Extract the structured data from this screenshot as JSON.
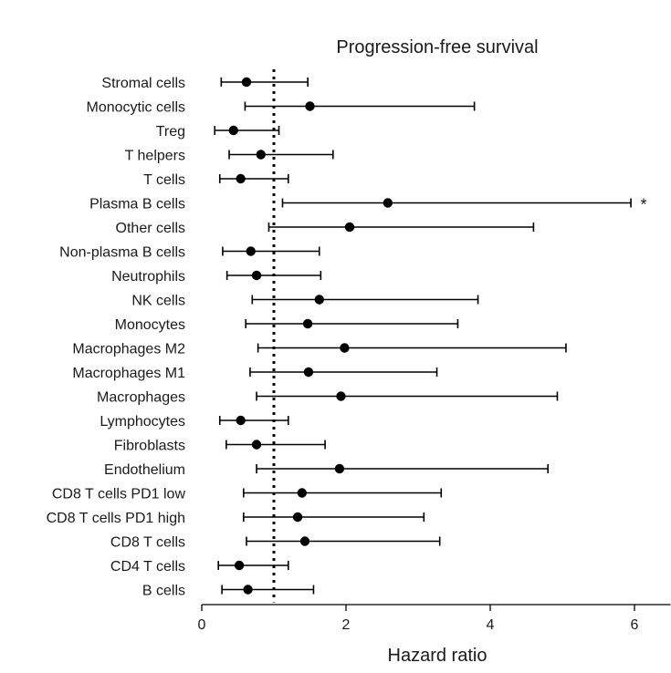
{
  "chart_data": {
    "type": "forest",
    "title": "Progression-free survival",
    "xlabel": "Hazard ratio",
    "xlim": [
      0,
      6.5
    ],
    "xticks": [
      0,
      2,
      4,
      6
    ],
    "xtick_labels": [
      "0",
      "2",
      "4",
      "6"
    ],
    "reference_line": 1,
    "rows": [
      {
        "label": "Stromal cells",
        "hr": 0.62,
        "lo": 0.27,
        "hi": 1.47,
        "sig": ""
      },
      {
        "label": "Monocytic cells",
        "hr": 1.5,
        "lo": 0.6,
        "hi": 3.78,
        "sig": ""
      },
      {
        "label": "Treg",
        "hr": 0.44,
        "lo": 0.18,
        "hi": 1.07,
        "sig": ""
      },
      {
        "label": "T helpers",
        "hr": 0.82,
        "lo": 0.38,
        "hi": 1.82,
        "sig": ""
      },
      {
        "label": "T cells",
        "hr": 0.54,
        "lo": 0.25,
        "hi": 1.2,
        "sig": ""
      },
      {
        "label": "Plasma B cells",
        "hr": 2.58,
        "lo": 1.12,
        "hi": 5.95,
        "sig": "*"
      },
      {
        "label": "Other cells",
        "hr": 2.05,
        "lo": 0.93,
        "hi": 4.6,
        "sig": ""
      },
      {
        "label": "Non-plasma B cells",
        "hr": 0.68,
        "lo": 0.29,
        "hi": 1.63,
        "sig": ""
      },
      {
        "label": "Neutrophils",
        "hr": 0.76,
        "lo": 0.35,
        "hi": 1.65,
        "sig": ""
      },
      {
        "label": "NK cells",
        "hr": 1.63,
        "lo": 0.7,
        "hi": 3.83,
        "sig": ""
      },
      {
        "label": "Monocytes",
        "hr": 1.47,
        "lo": 0.61,
        "hi": 3.55,
        "sig": ""
      },
      {
        "label": "Macrophages M2",
        "hr": 1.98,
        "lo": 0.78,
        "hi": 5.05,
        "sig": ""
      },
      {
        "label": "Macrophages M1",
        "hr": 1.48,
        "lo": 0.67,
        "hi": 3.26,
        "sig": ""
      },
      {
        "label": "Macrophages",
        "hr": 1.93,
        "lo": 0.76,
        "hi": 4.93,
        "sig": ""
      },
      {
        "label": "Lymphocytes",
        "hr": 0.54,
        "lo": 0.25,
        "hi": 1.2,
        "sig": ""
      },
      {
        "label": "Fibroblasts",
        "hr": 0.76,
        "lo": 0.34,
        "hi": 1.71,
        "sig": ""
      },
      {
        "label": "Endothelium",
        "hr": 1.91,
        "lo": 0.76,
        "hi": 4.8,
        "sig": ""
      },
      {
        "label": "CD8 T cells PD1 low",
        "hr": 1.39,
        "lo": 0.58,
        "hi": 3.32,
        "sig": ""
      },
      {
        "label": "CD8 T cells PD1 high",
        "hr": 1.33,
        "lo": 0.58,
        "hi": 3.08,
        "sig": ""
      },
      {
        "label": "CD8 T cells",
        "hr": 1.43,
        "lo": 0.62,
        "hi": 3.3,
        "sig": ""
      },
      {
        "label": "CD4 T cells",
        "hr": 0.52,
        "lo": 0.23,
        "hi": 1.2,
        "sig": ""
      },
      {
        "label": "B cells",
        "hr": 0.64,
        "lo": 0.28,
        "hi": 1.55,
        "sig": ""
      }
    ]
  }
}
